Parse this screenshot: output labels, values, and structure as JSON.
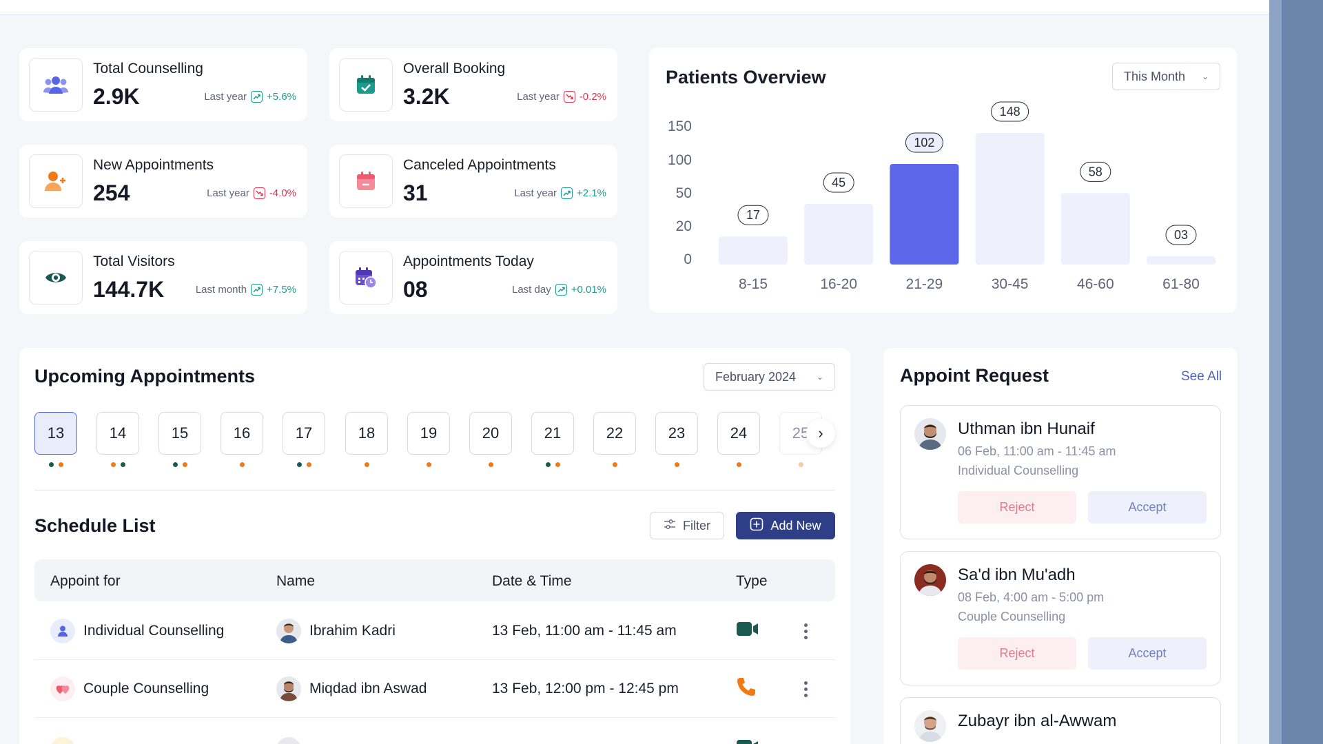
{
  "stats": [
    {
      "title": "Total Counselling",
      "value": "2.9K",
      "period": "Last year",
      "change": "+5.6%",
      "direction": "up",
      "icon": "users-icon",
      "color": "#5664e7"
    },
    {
      "title": "Overall Booking",
      "value": "3.2K",
      "period": "Last year",
      "change": "-0.2%",
      "direction": "down",
      "icon": "calendar-check-icon",
      "color": "#1a9b8c"
    },
    {
      "title": "New Appointments",
      "value": "254",
      "period": "Last year",
      "change": "-4.0%",
      "direction": "down",
      "icon": "user-plus-icon",
      "color": "#f07b16"
    },
    {
      "title": "Canceled Appointments",
      "value": "31",
      "period": "Last year",
      "change": "+2.1%",
      "direction": "up",
      "icon": "calendar-minus-icon",
      "color": "#f05a6e"
    },
    {
      "title": "Total Visitors",
      "value": "144.7K",
      "period": "Last month",
      "change": "+7.5%",
      "direction": "up",
      "icon": "eye-icon",
      "color": "#1b5a52"
    },
    {
      "title": "Appointments Today",
      "value": "08",
      "period": "Last day",
      "change": "+0.01%",
      "direction": "up",
      "icon": "calendar-clock-icon",
      "color": "#6a4fcf"
    }
  ],
  "patients_overview": {
    "title": "Patients Overview",
    "filter": "This Month"
  },
  "chart_data": {
    "type": "bar",
    "title": "Patients Overview",
    "categories": [
      "8-15",
      "16-20",
      "21-29",
      "30-45",
      "46-60",
      "61-80"
    ],
    "values": [
      17,
      45,
      102,
      148,
      58,
      3
    ],
    "value_labels": [
      "17",
      "45",
      "102",
      "148",
      "58",
      "03"
    ],
    "y_ticks": [
      "150",
      "100",
      "50",
      "20",
      "0"
    ],
    "highlighted_category": "21-29",
    "colors": {
      "bar": "#eef0fc",
      "highlight": "#5b67e8"
    }
  },
  "upcoming": {
    "title": "Upcoming Appointments",
    "month": "February 2024",
    "days": [
      {
        "label": "13",
        "dots": [
          "g",
          "o"
        ]
      },
      {
        "label": "14",
        "dots": [
          "o",
          "g"
        ]
      },
      {
        "label": "15",
        "dots": [
          "g",
          "o"
        ]
      },
      {
        "label": "16",
        "dots": [
          "o"
        ]
      },
      {
        "label": "17",
        "dots": [
          "g",
          "o"
        ]
      },
      {
        "label": "18",
        "dots": [
          "o"
        ]
      },
      {
        "label": "19",
        "dots": [
          "o"
        ]
      },
      {
        "label": "20",
        "dots": [
          "o"
        ]
      },
      {
        "label": "21",
        "dots": [
          "g",
          "o"
        ]
      },
      {
        "label": "22",
        "dots": [
          "o"
        ]
      },
      {
        "label": "23",
        "dots": [
          "o"
        ]
      },
      {
        "label": "24",
        "dots": [
          "o"
        ]
      },
      {
        "label": "25",
        "dots": [
          "op"
        ]
      }
    ],
    "selected": "13"
  },
  "schedule": {
    "title": "Schedule List",
    "filter_label": "Filter",
    "add_label": "Add New",
    "columns": [
      "Appoint for",
      "Name",
      "Date & Time",
      "Type"
    ],
    "rows": [
      {
        "appoint_for": "Individual Counselling",
        "name": "Ibrahim Kadri",
        "datetime": "13 Feb, 11:00 am - 11:45 am",
        "type": "video-icon"
      },
      {
        "appoint_for": "Couple Counselling",
        "name": "Miqdad ibn Aswad",
        "datetime": "13 Feb, 12:00 pm - 12:45 pm",
        "type": "phone-icon"
      }
    ]
  },
  "requests": {
    "title": "Appoint Request",
    "see_all": "See All",
    "items": [
      {
        "name": "Uthman ibn Hunaif",
        "time": "06 Feb, 11:00 am - 11:45 am",
        "type": "Individual Counselling",
        "reject": "Reject",
        "accept": "Accept"
      },
      {
        "name": "Sa'd ibn Mu'adh",
        "time": "08 Feb, 4:00 am - 5:00 pm",
        "type": "Couple Counselling",
        "reject": "Reject",
        "accept": "Accept"
      },
      {
        "name": "Zubayr ibn al-Awwam"
      }
    ]
  }
}
